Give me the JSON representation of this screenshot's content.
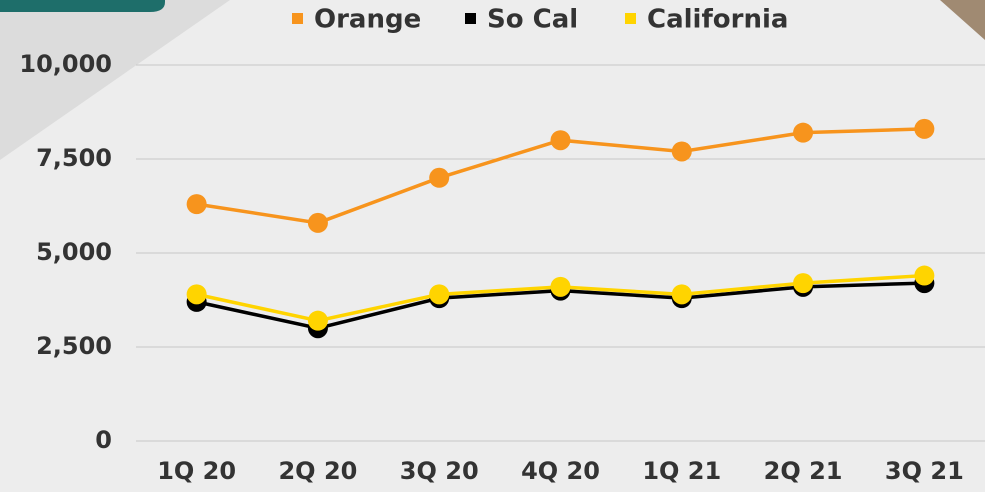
{
  "chart_data": {
    "type": "line",
    "categories": [
      "1Q 20",
      "2Q 20",
      "3Q 20",
      "4Q 20",
      "1Q 21",
      "2Q 21",
      "3Q 21"
    ],
    "series": [
      {
        "name": "Orange",
        "color": "#f7941d",
        "values": [
          6300,
          5800,
          7000,
          8000,
          7700,
          8200,
          8300
        ]
      },
      {
        "name": "So Cal",
        "color": "#000000",
        "values": [
          3700,
          3000,
          3800,
          4000,
          3800,
          4100,
          4200
        ]
      },
      {
        "name": "California",
        "color": "#ffd400",
        "values": [
          3900,
          3200,
          3900,
          4100,
          3900,
          4200,
          4400
        ]
      }
    ],
    "ylim": [
      0,
      10000
    ],
    "yticks": [
      0,
      {
        "value": 2500,
        "label": "2,500"
      },
      {
        "value": 5000,
        "label": "5,000"
      },
      {
        "value": 7500,
        "label": "7,500"
      },
      {
        "value": 10000,
        "label": "10,000"
      }
    ],
    "grid": true
  }
}
